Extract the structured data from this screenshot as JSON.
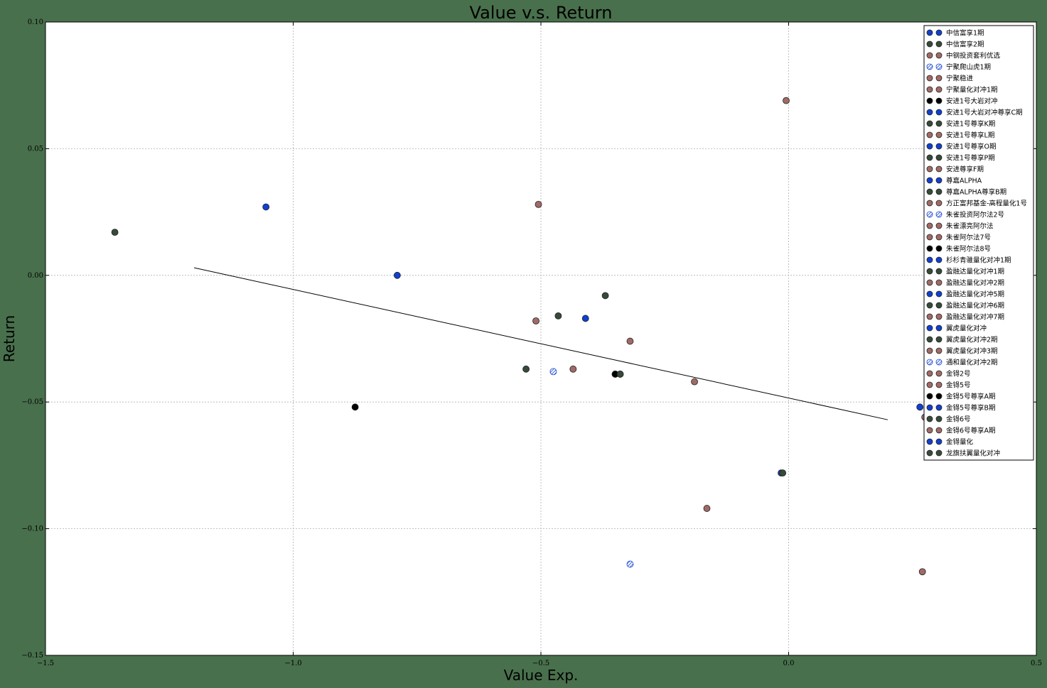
{
  "chart_data": {
    "type": "scatter",
    "title": "Value v.s. Return",
    "xlabel": "Value Exp.",
    "ylabel": "Return",
    "xlim": [
      -1.5,
      0.5
    ],
    "ylim": [
      -0.15,
      0.1
    ],
    "xticks": [
      -1.5,
      -1.0,
      -0.5,
      0.0,
      0.5
    ],
    "xtick_labels": [
      "−1.5",
      "−1.0",
      "−0.5",
      "0.0",
      "0.5"
    ],
    "yticks": [
      -0.15,
      -0.1,
      -0.05,
      0.0,
      0.05,
      0.1
    ],
    "ytick_labels": [
      "−0.15",
      "−0.10",
      "−0.05",
      "0.00",
      "0.05",
      "0.10"
    ],
    "grid": true,
    "legend_position": "top-right",
    "colors": {
      "blue": "#1040d0",
      "dark": "#364a3a",
      "rose": "#a16a66",
      "black": "#000000",
      "line": "#000000",
      "hatch": "#1040d0"
    },
    "fit_line": {
      "x": [
        -1.2,
        0.2
      ],
      "y": [
        0.003,
        -0.057
      ]
    },
    "series": [
      {
        "name": "中信富享1期",
        "color": "blue",
        "x": [
          -1.055
        ],
        "y": [
          0.027
        ]
      },
      {
        "name": "中信富享2期",
        "color": "dark",
        "x": [
          -1.36
        ],
        "y": [
          0.017
        ]
      },
      {
        "name": "中钢投资套利优选",
        "color": "rose",
        "x": [
          -0.505
        ],
        "y": [
          0.028
        ]
      },
      {
        "name": "宁聚爬山虎1期",
        "color": "hatch",
        "x": [
          -0.475
        ],
        "y": [
          -0.038
        ]
      },
      {
        "name": "宁聚稳进",
        "color": "rose",
        "x": [
          -0.51
        ],
        "y": [
          -0.018
        ]
      },
      {
        "name": "宁聚量化对冲1期",
        "color": "rose",
        "x": [
          -0.435
        ],
        "y": [
          -0.037
        ]
      },
      {
        "name": "安进1号大岩对冲",
        "color": "black",
        "x": [
          -0.875
        ],
        "y": [
          -0.052
        ]
      },
      {
        "name": "安进1号大岩对冲尊享C期",
        "color": "blue",
        "x": [
          -0.79
        ],
        "y": [
          0.0
        ]
      },
      {
        "name": "安进1号尊享K期",
        "color": "dark",
        "x": [
          -0.465
        ],
        "y": [
          -0.016
        ]
      },
      {
        "name": "安进1号尊享L期",
        "color": "rose",
        "x": [
          -0.32
        ],
        "y": [
          -0.026
        ]
      },
      {
        "name": "安进1号尊享O期",
        "color": "blue",
        "x": [
          -0.41
        ],
        "y": [
          -0.017
        ]
      },
      {
        "name": "安进1号尊享P期",
        "color": "dark",
        "x": [
          -0.53
        ],
        "y": [
          -0.037
        ]
      },
      {
        "name": "安进尊享F期",
        "color": "rose",
        "x": [
          -0.005
        ],
        "y": [
          0.069
        ]
      },
      {
        "name": "尊嘉ALPHA",
        "color": "blue",
        "x": [
          -0.34
        ],
        "y": [
          -0.039
        ]
      },
      {
        "name": "尊嘉ALPHA尊享B期",
        "color": "dark",
        "x": [
          -0.37
        ],
        "y": [
          -0.008
        ]
      },
      {
        "name": "方正富邦基金-高程量化1号",
        "color": "rose",
        "x": [
          -0.19
        ],
        "y": [
          -0.042
        ]
      },
      {
        "name": "朱雀投资阿尔法2号",
        "color": "hatch",
        "x": [
          -0.32
        ],
        "y": [
          -0.114
        ]
      },
      {
        "name": "朱雀漂亮阿尔法",
        "color": "rose",
        "x": [
          -0.165
        ],
        "y": [
          -0.092
        ]
      },
      {
        "name": "朱雀阿尔法7号",
        "color": "rose",
        "x": [
          -0.35
        ],
        "y": [
          -0.039
        ]
      },
      {
        "name": "朱雀阿尔法8号",
        "color": "black",
        "x": [
          -0.35
        ],
        "y": [
          -0.039
        ]
      },
      {
        "name": "杉杉青骓量化对冲1期",
        "color": "blue",
        "x": [
          -0.015
        ],
        "y": [
          -0.078
        ]
      },
      {
        "name": "盈融达量化对冲1期",
        "color": "dark",
        "x": [
          -0.012
        ],
        "y": [
          -0.078
        ]
      },
      {
        "name": "盈融达量化对冲2期",
        "color": "rose",
        "x": [
          0.27
        ],
        "y": [
          -0.117
        ]
      },
      {
        "name": "盈融达量化对冲5期",
        "color": "blue",
        "x": [
          0.265
        ],
        "y": [
          -0.052
        ]
      },
      {
        "name": "盈融达量化对冲6期",
        "color": "dark",
        "x": [
          -0.34
        ],
        "y": [
          -0.039
        ]
      },
      {
        "name": "盈融达量化对冲7期",
        "color": "rose",
        "x": [
          0.275
        ],
        "y": [
          -0.056
        ]
      },
      {
        "name": "翼虎量化对冲",
        "color": "blue",
        "x": [],
        "y": []
      },
      {
        "name": "翼虎量化对冲2期",
        "color": "dark",
        "x": [],
        "y": []
      },
      {
        "name": "翼虎量化对冲3期",
        "color": "rose",
        "x": [],
        "y": []
      },
      {
        "name": "通和量化对冲2期",
        "color": "hatch",
        "x": [],
        "y": []
      },
      {
        "name": "金锝2号",
        "color": "rose",
        "x": [],
        "y": []
      },
      {
        "name": "金锝5号",
        "color": "rose",
        "x": [],
        "y": []
      },
      {
        "name": "金锝5号尊享A期",
        "color": "black",
        "x": [],
        "y": []
      },
      {
        "name": "金锝5号尊享B期",
        "color": "blue",
        "x": [],
        "y": []
      },
      {
        "name": "金锝6号",
        "color": "dark",
        "x": [],
        "y": []
      },
      {
        "name": "金锝6号尊享A期",
        "color": "rose",
        "x": [],
        "y": []
      },
      {
        "name": "金锝量化",
        "color": "blue",
        "x": [],
        "y": []
      },
      {
        "name": "龙旗扶翼量化对冲",
        "color": "dark",
        "x": [],
        "y": []
      }
    ]
  }
}
